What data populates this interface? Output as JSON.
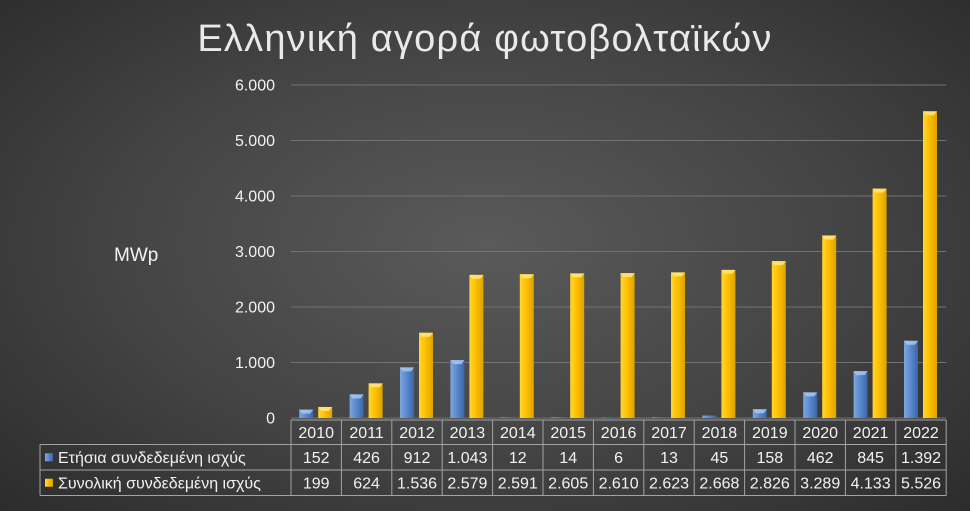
{
  "chart_data": {
    "type": "bar",
    "title": "Ελληνική αγορά φωτοβολταϊκών",
    "ylabel": "MWp",
    "categories": [
      "2010",
      "2011",
      "2012",
      "2013",
      "2014",
      "2015",
      "2016",
      "2017",
      "2018",
      "2019",
      "2020",
      "2021",
      "2022"
    ],
    "series": [
      {
        "name": "Ετήσια συνδεδεμένη ισχύς",
        "color": "#4F81BD",
        "values": [
          152,
          426,
          912,
          1043,
          12,
          14,
          6,
          13,
          45,
          158,
          462,
          845,
          1392
        ],
        "labels": [
          "152",
          "426",
          "912",
          "1.043",
          "12",
          "14",
          "6",
          "13",
          "45",
          "158",
          "462",
          "845",
          "1.392"
        ]
      },
      {
        "name": "Συνολική συνδεδεμένη ισχύς",
        "color": "#FFC000",
        "values": [
          199,
          624,
          1536,
          2579,
          2591,
          2605,
          2610,
          2623,
          2668,
          2826,
          3289,
          4133,
          5526
        ],
        "labels": [
          "199",
          "624",
          "1.536",
          "2.579",
          "2.591",
          "2.605",
          "2.610",
          "2.623",
          "2.668",
          "2.826",
          "3.289",
          "4.133",
          "5.526"
        ]
      }
    ],
    "ylim": [
      0,
      6000
    ],
    "yticks": [
      0,
      1000,
      2000,
      3000,
      4000,
      5000,
      6000
    ],
    "ytick_labels": [
      "0",
      "1.000",
      "2.000",
      "3.000",
      "4.000",
      "5.000",
      "6.000"
    ],
    "grid": true,
    "legend": "bottom",
    "data_table": true
  },
  "colors": {
    "text": "#f2f2f2",
    "gridline": "#727272",
    "table_border": "#a3a3a3"
  }
}
